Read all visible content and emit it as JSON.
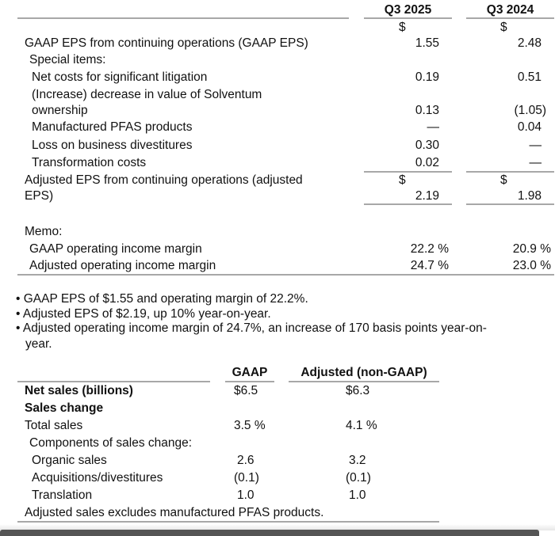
{
  "eps_table": {
    "columns": [
      "Q3 2025",
      "Q3 2024"
    ],
    "currency": "$",
    "gaap_eps": {
      "label": "GAAP EPS from continuing operations (GAAP EPS)",
      "values": [
        "1.55",
        "2.48"
      ]
    },
    "special_items_label": "Special items:",
    "items": [
      {
        "label": "Net costs for significant litigation",
        "values": [
          "0.19",
          "0.51"
        ]
      },
      {
        "label": "(Increase) decrease in value of Solventum",
        "label2": "ownership",
        "values": [
          "0.13",
          "(1.05)"
        ]
      },
      {
        "label": "Manufactured PFAS products",
        "values": [
          "—",
          "0.04"
        ]
      },
      {
        "label": "Loss on business divestitures",
        "values": [
          "0.30",
          "—"
        ]
      },
      {
        "label": "Transformation costs",
        "values": [
          "0.02",
          "—"
        ]
      }
    ],
    "adjusted_eps": {
      "label": "Adjusted EPS from continuing operations (adjusted",
      "label2": "EPS)",
      "values": [
        "2.19",
        "1.98"
      ]
    },
    "memo_label": "Memo:",
    "memo": [
      {
        "label": "GAAP operating income margin",
        "values": [
          "22.2 %",
          "20.9 %"
        ]
      },
      {
        "label": "Adjusted operating income margin",
        "values": [
          "24.7 %",
          "23.0 %"
        ]
      }
    ]
  },
  "bullets": [
    "GAAP EPS of $1.55 and operating margin of 22.2%.",
    "Adjusted EPS of $2.19, up 10% year-on-year.",
    "Adjusted operating income margin of 24.7%, an increase of 170 basis points year-on-",
    "year."
  ],
  "sales_table": {
    "columns": [
      "GAAP",
      "Adjusted (non-GAAP)"
    ],
    "rows": [
      {
        "label": "Net sales (billions)",
        "values": [
          "$6.5",
          "$6.3"
        ]
      },
      {
        "label": "Sales change",
        "values": [
          "",
          ""
        ]
      },
      {
        "label": "Total sales",
        "values": [
          "3.5 %",
          "4.1 %"
        ]
      },
      {
        "label": "Components of sales change:",
        "values": [
          "",
          ""
        ]
      },
      {
        "label": "Organic sales",
        "values": [
          "2.6",
          "3.2"
        ]
      },
      {
        "label": "Acquisitions/divestitures",
        "values": [
          "(0.1)",
          "(0.1)"
        ]
      },
      {
        "label": "Translation",
        "values": [
          "1.0",
          "1.0"
        ]
      }
    ],
    "footnote": "Adjusted sales excludes manufactured PFAS products."
  }
}
